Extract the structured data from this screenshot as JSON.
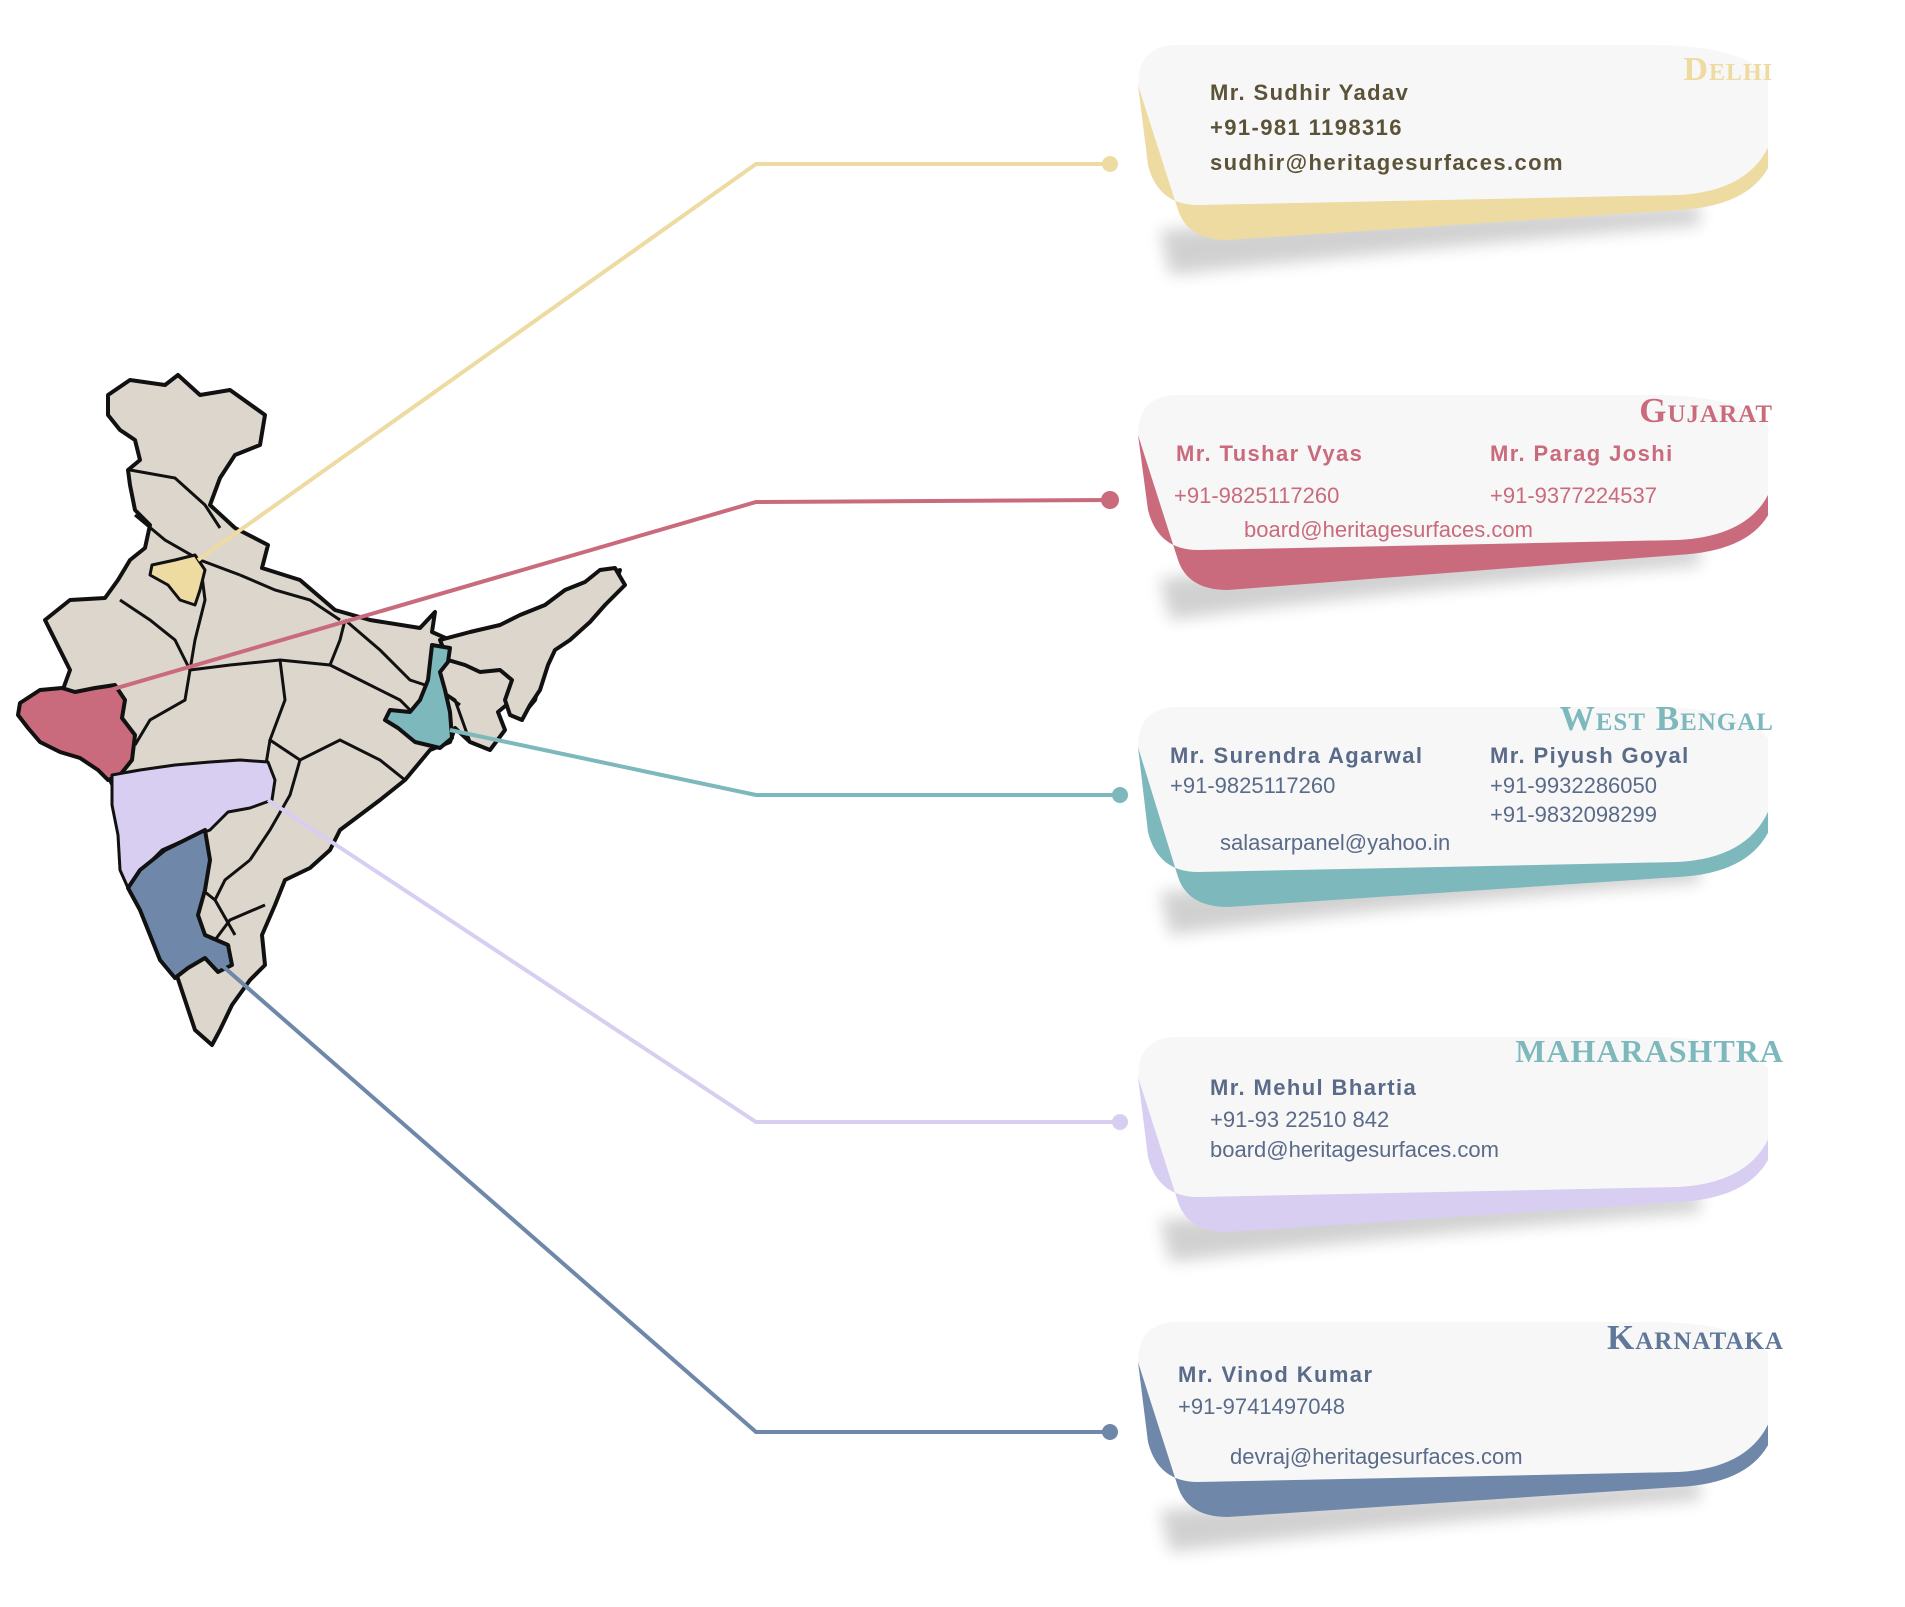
{
  "colors": {
    "delhi": "#EEDBA2",
    "gujarat": "#C96B7C",
    "west_bengal": "#7DB8BD",
    "maharashtra": "#D8CEF1",
    "karnataka": "#6F88A9",
    "map_land": "#DDD6CD",
    "delhi_text": "#C9A85A",
    "delhi_body": "#5C5238",
    "gujarat_text": "#C96B7C",
    "west_bengal_text": "#7DB8BD",
    "contact_text": "#5A6B89",
    "maharashtra_title": "#7DB8BD",
    "karnataka_text": "#5F7799"
  },
  "map": {
    "icon": "india-map-icon"
  },
  "cards": {
    "delhi": {
      "region": "Delhi",
      "name": "Mr. Sudhir Yadav",
      "phone": "+91-981 1198316",
      "email": "sudhir@heritagesurfaces.com"
    },
    "gujarat": {
      "region": "Gujarat",
      "name1": "Mr. Tushar Vyas",
      "name2": "Mr. Parag Joshi",
      "phone1": "+91-9825117260",
      "phone2": "+91-9377224537",
      "email": "board@heritagesurfaces.com"
    },
    "west_bengal": {
      "region": "West Bengal",
      "name1": "Mr. Surendra Agarwal",
      "name2": "Mr. Piyush Goyal",
      "phone1": "+91-9825117260",
      "phone2a": "+91-9932286050",
      "phone2b": "+91-9832098299",
      "email": "salasarpanel@yahoo.in"
    },
    "maharashtra": {
      "region": "maharashtra",
      "name": "Mr. Mehul Bhartia",
      "phone": "+91-93 22510 842",
      "email": "board@heritagesurfaces.com"
    },
    "karnataka": {
      "region": "Karnataka",
      "name": "Mr. Vinod Kumar",
      "phone": "+91-9741497048",
      "email": "devraj@heritagesurfaces.com"
    }
  }
}
